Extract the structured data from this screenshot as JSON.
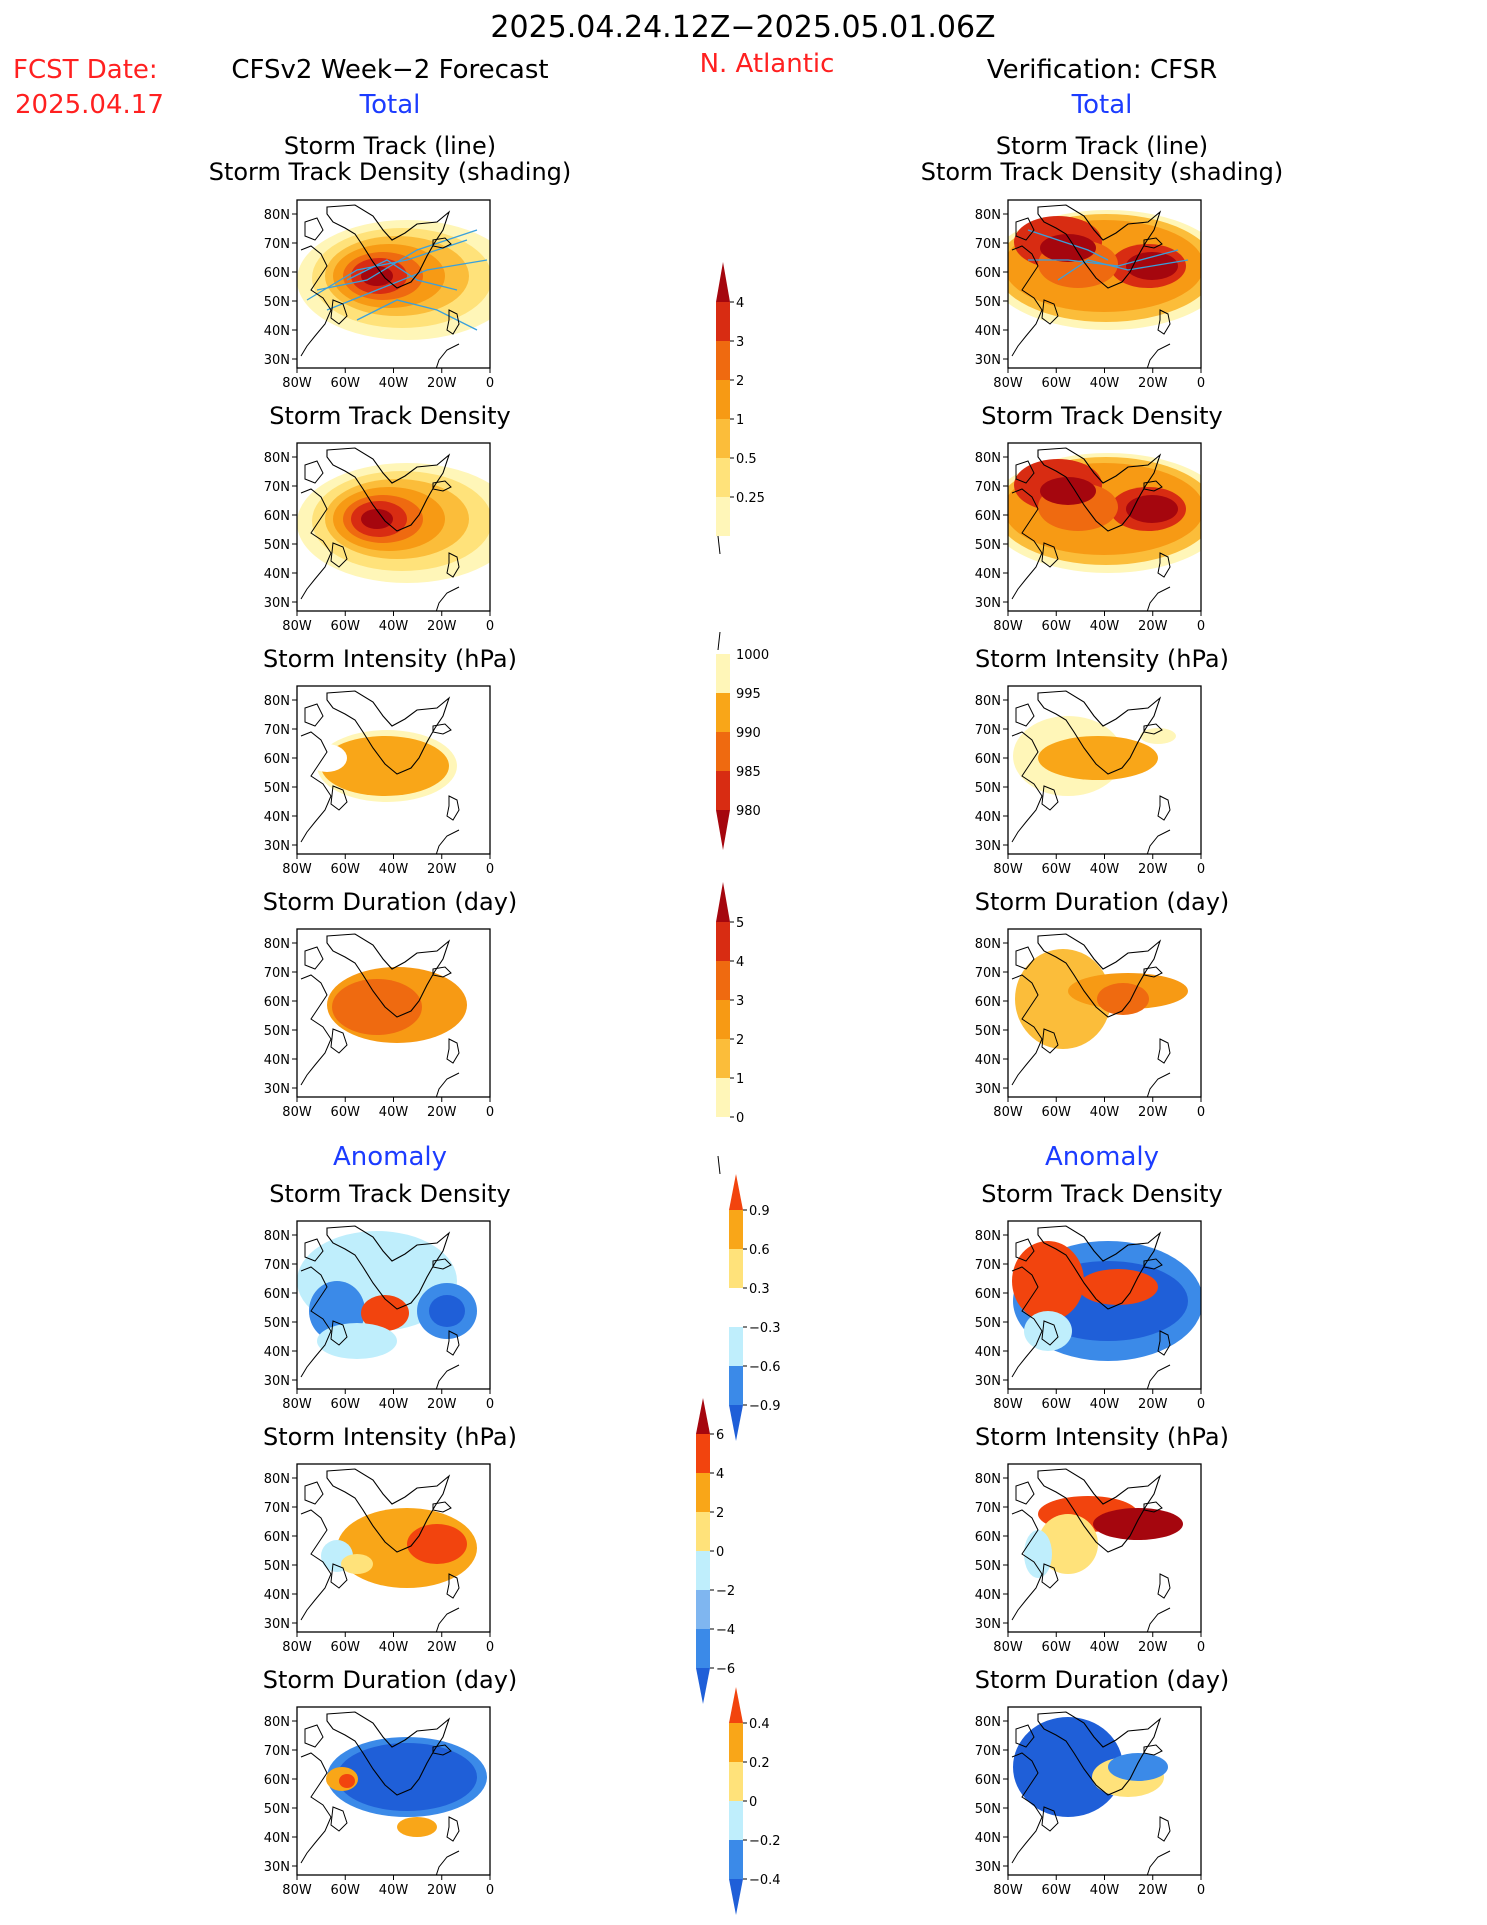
{
  "header": {
    "period": "2025.04.24.12Z−2025.05.01.06Z",
    "region": "N. Atlantic",
    "fcst_label": "FCST Date:",
    "fcst_date": "2025.04.17",
    "left_title": "CFSv2 Week−2 Forecast",
    "right_title": "Verification: CFSR",
    "total_label": "Total",
    "anomaly_label": "Anomaly"
  },
  "map_axes": {
    "x_ticks": [
      "80W",
      "60W",
      "40W",
      "20W",
      "0"
    ],
    "y_ticks": [
      "80N",
      "70N",
      "60N",
      "50N",
      "40N",
      "30N"
    ]
  },
  "colors": {
    "title_red": "#ff2020",
    "section_blue": "#1c3cff",
    "track_line": "#3aa0dc"
  },
  "chart_data": [
    {
      "type": "heatmap",
      "column": "forecast",
      "title": "Storm Track (line)",
      "subtitle": "Storm Track Density (shading)",
      "scale": "density"
    },
    {
      "type": "heatmap",
      "column": "verification",
      "title": "Storm Track (line)",
      "subtitle": "Storm Track Density (shading)",
      "scale": "density"
    },
    {
      "type": "heatmap",
      "column": "forecast",
      "title": "Storm Track Density",
      "scale": "density"
    },
    {
      "type": "heatmap",
      "column": "verification",
      "title": "Storm Track Density",
      "scale": "density"
    },
    {
      "type": "heatmap",
      "column": "forecast",
      "title": "Storm Intensity (hPa)",
      "scale": "intensity"
    },
    {
      "type": "heatmap",
      "column": "verification",
      "title": "Storm Intensity (hPa)",
      "scale": "intensity"
    },
    {
      "type": "heatmap",
      "column": "forecast",
      "title": "Storm Duration (day)",
      "scale": "duration"
    },
    {
      "type": "heatmap",
      "column": "verification",
      "title": "Storm Duration (day)",
      "scale": "duration"
    },
    {
      "type": "heatmap",
      "column": "forecast",
      "title": "Storm Track Density",
      "scale": "density_anomaly"
    },
    {
      "type": "heatmap",
      "column": "verification",
      "title": "Storm Track Density",
      "scale": "density_anomaly"
    },
    {
      "type": "heatmap",
      "column": "forecast",
      "title": "Storm Intensity (hPa)",
      "scale": "intensity_anomaly"
    },
    {
      "type": "heatmap",
      "column": "verification",
      "title": "Storm Intensity (hPa)",
      "scale": "intensity_anomaly"
    },
    {
      "type": "heatmap",
      "column": "forecast",
      "title": "Storm Duration (day)",
      "scale": "duration_anomaly"
    },
    {
      "type": "heatmap",
      "column": "verification",
      "title": "Storm Duration (day)",
      "scale": "duration_anomaly"
    }
  ],
  "colorbars": {
    "density": {
      "labels": [
        "0.25",
        "0.5",
        "1",
        "2",
        "3",
        "4"
      ],
      "colors": [
        "#fff6b8",
        "#ffe27a",
        "#fbbd3a",
        "#f79a14",
        "#ef6a10",
        "#d82c12",
        "#a5060e"
      ]
    },
    "intensity": {
      "labels": [
        "1000",
        "995",
        "990",
        "985",
        "980"
      ],
      "colors": [
        "#ffffff",
        "#fff6b8",
        "#f9a618",
        "#ef6a10",
        "#d82c12",
        "#a5060e"
      ]
    },
    "duration": {
      "labels": [
        "0",
        "1",
        "2",
        "3",
        "4",
        "5"
      ],
      "colors": [
        "#ffffff",
        "#fff6b8",
        "#fbbd3a",
        "#f79a14",
        "#ef6a10",
        "#d82c12",
        "#a5060e"
      ]
    },
    "density_anomaly": {
      "labels": [
        "−0.9",
        "−0.6",
        "−0.3",
        "0.3",
        "0.6",
        "0.9"
      ],
      "colors": [
        "#1f5fd8",
        "#3b8ae8",
        "#bfeefc",
        "#ffffff",
        "#ffe27a",
        "#f9a618",
        "#f2440e"
      ]
    },
    "intensity_anomaly": {
      "labels": [
        "−6",
        "−4",
        "−2",
        "0",
        "2",
        "4",
        "6"
      ],
      "colors": [
        "#1f5fd8",
        "#3b8ae8",
        "#7fb6f0",
        "#bfeefc",
        "#ffe27a",
        "#f9a618",
        "#f2440e",
        "#a5060e"
      ]
    },
    "duration_anomaly": {
      "labels": [
        "−0.4",
        "−0.2",
        "0",
        "0.2",
        "0.4"
      ],
      "colors": [
        "#1f5fd8",
        "#3b8ae8",
        "#bfeefc",
        "#ffe27a",
        "#f9a618",
        "#f2440e"
      ]
    }
  }
}
